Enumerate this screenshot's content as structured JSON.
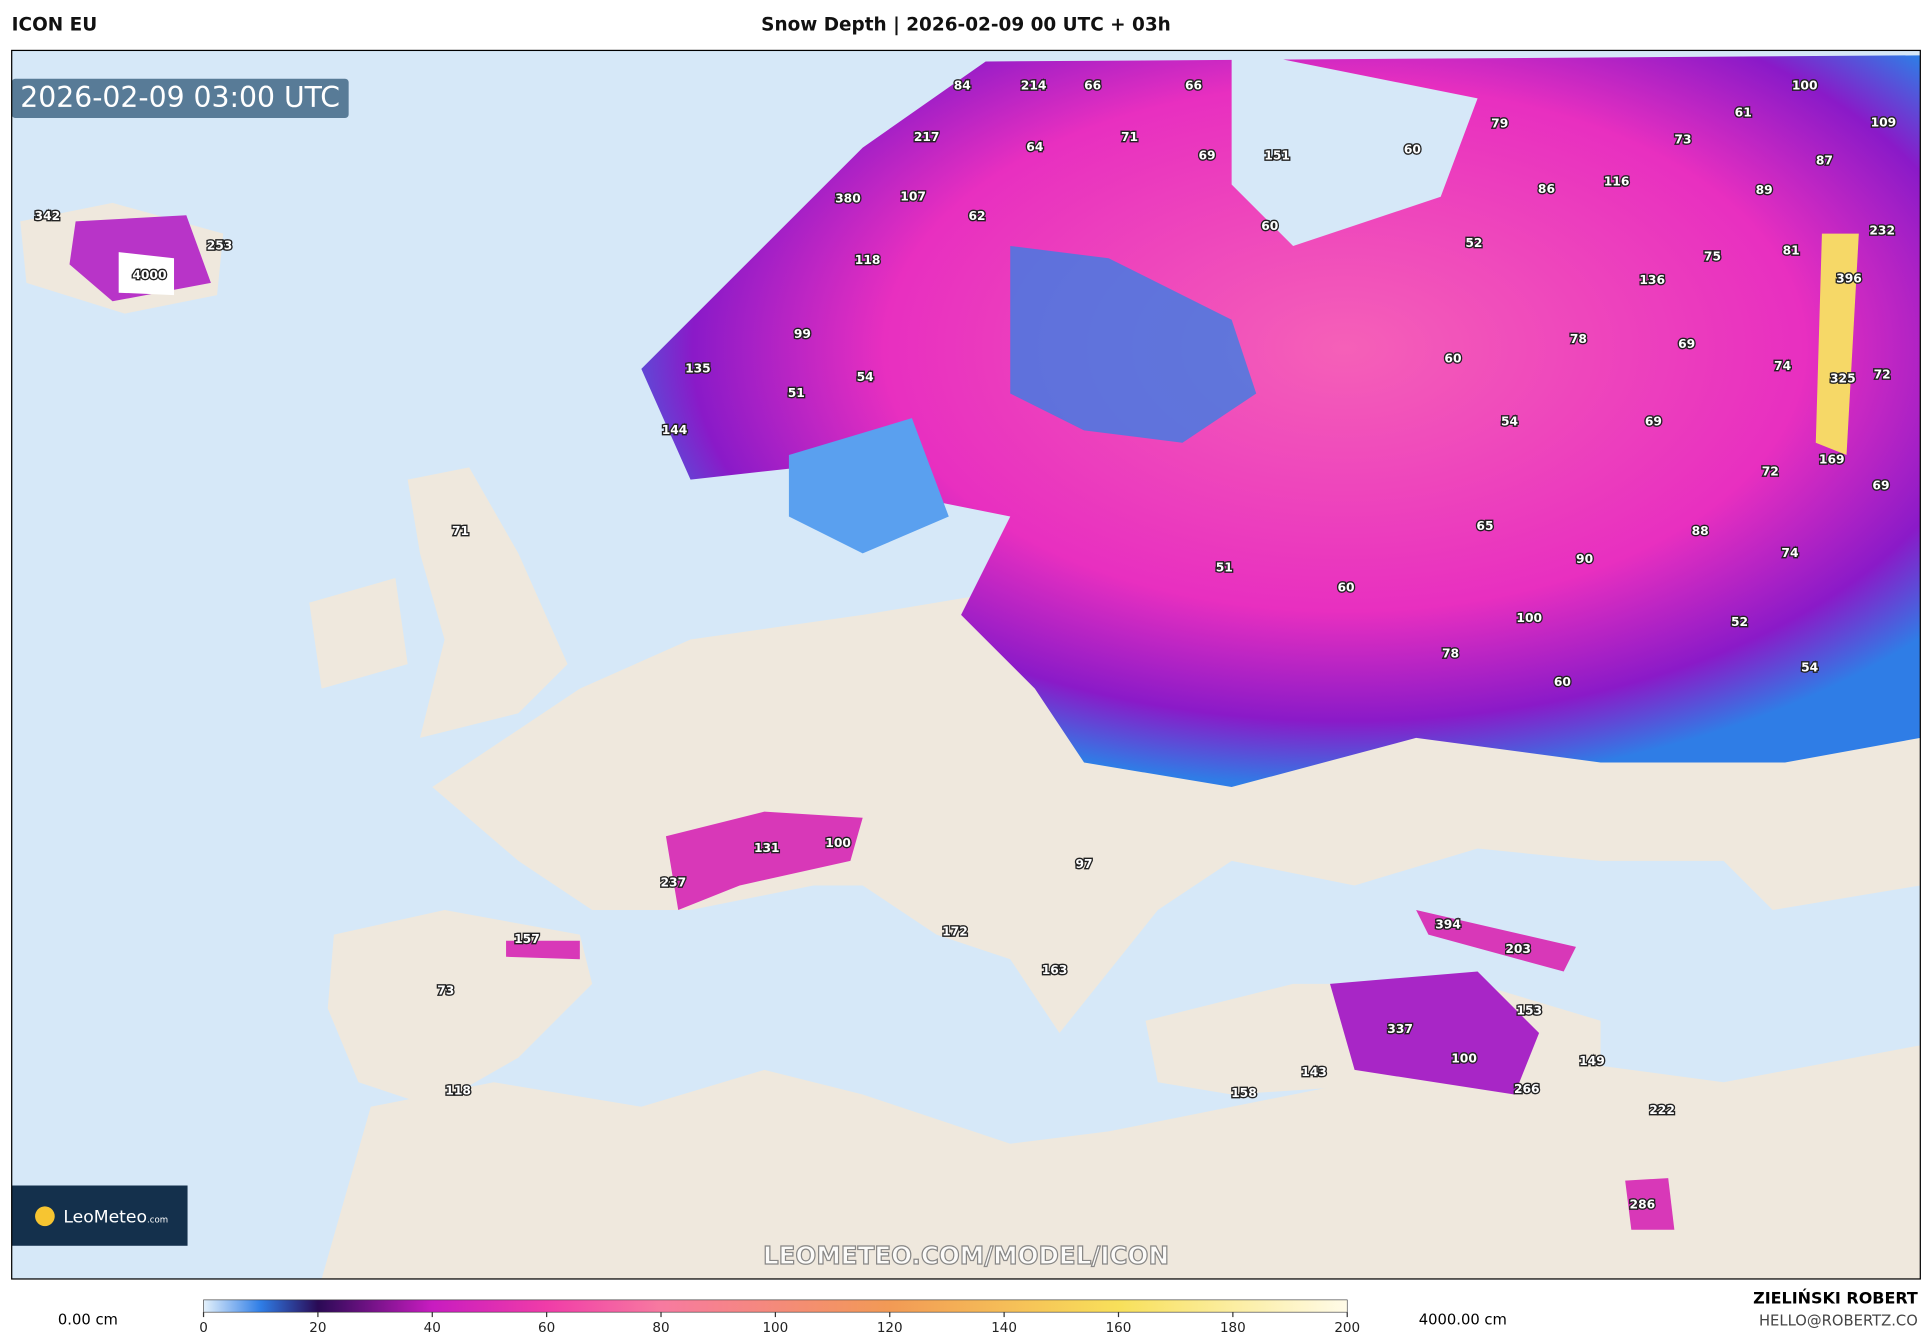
{
  "header": {
    "model": "ICON EU",
    "title": "Snow Depth | 2026-02-09 00 UTC + 03h"
  },
  "map": {
    "timestamp": "2026-02-09 03:00 UTC",
    "watermark": "LEOMETEO.COM/MODEL/ICON",
    "logo": {
      "name": "LeoMeteo",
      "suffix": ".com"
    },
    "labels": [
      342,
      253,
      4000,
      84,
      214,
      66,
      66,
      100,
      61,
      109,
      79,
      217,
      71,
      64,
      69,
      151,
      60,
      73,
      87,
      86,
      116,
      89,
      380,
      107,
      62,
      60,
      52,
      232,
      118,
      136,
      75,
      81,
      396,
      99,
      78,
      69,
      60,
      74,
      135,
      54,
      325,
      72,
      51,
      54,
      69,
      144,
      169,
      72,
      69,
      71,
      65,
      88,
      90,
      74,
      51,
      60,
      100,
      52,
      78,
      54,
      60,
      100,
      131,
      97,
      237,
      394,
      203,
      157,
      172,
      163,
      73,
      153,
      337,
      100,
      149,
      143,
      266,
      118,
      158,
      222,
      286
    ]
  },
  "colorbar": {
    "min_label": "0.00 cm",
    "max_label": "4000.00 cm",
    "ticks": [
      0,
      20,
      40,
      60,
      80,
      100,
      120,
      140,
      160,
      180,
      200
    ]
  },
  "footer": {
    "author": "ZIELIŃSKI ROBERT",
    "email": "HELLO@ROBERTZ.CO"
  }
}
